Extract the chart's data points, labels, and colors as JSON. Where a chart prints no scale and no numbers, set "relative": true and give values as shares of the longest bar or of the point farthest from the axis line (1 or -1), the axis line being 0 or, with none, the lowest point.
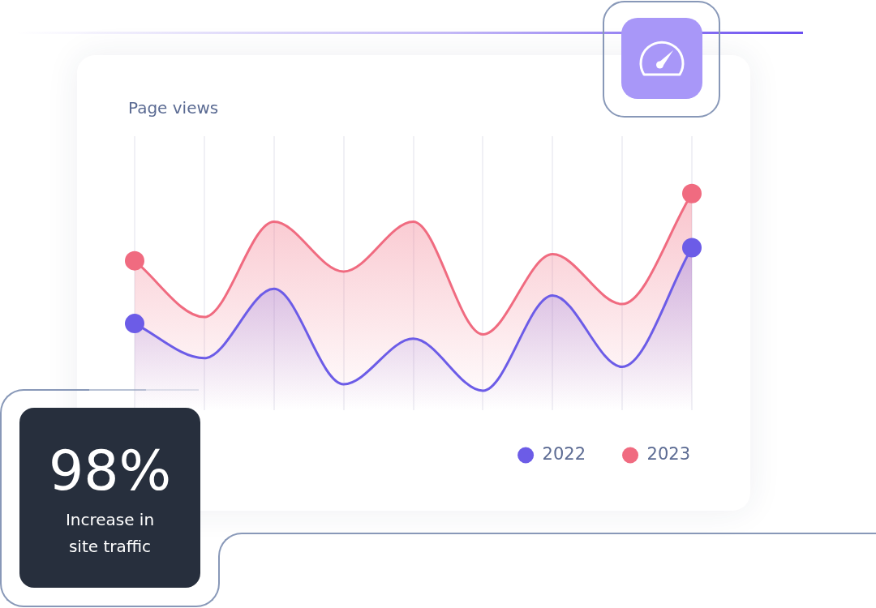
{
  "chart_data": [
    {
      "type": "area",
      "title": "Page views",
      "categories": [
        null,
        null,
        null,
        null,
        null,
        null,
        null,
        null,
        null
      ],
      "relative": true,
      "series": [
        {
          "name": "2022",
          "color": "#6c5ce7",
          "values": [
            0.4,
            0.24,
            0.56,
            0.12,
            0.33,
            0.09,
            0.53,
            0.2,
            0.75
          ]
        },
        {
          "name": "2023",
          "color": "#f06b80",
          "values": [
            0.69,
            0.43,
            0.87,
            0.64,
            0.87,
            0.35,
            0.72,
            0.49,
            1
          ]
        }
      ],
      "grid": "x",
      "legend": "bottom right",
      "tick_labels": false
    },
    {
      "type": "other",
      "title": "98%",
      "subtitle": "Increase in site traffic"
    }
  ]
}
